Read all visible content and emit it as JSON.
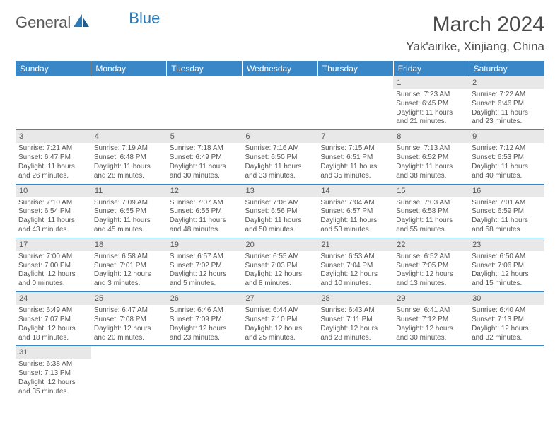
{
  "brand": {
    "part1": "General",
    "part2": "Blue"
  },
  "title": "March 2024",
  "location": "Yak'airike, Xinjiang, China",
  "colors": {
    "header_bg": "#3a87c7",
    "header_text": "#ffffff",
    "daynum_bg": "#e8e8e8",
    "border": "#3a87c7",
    "text": "#555555",
    "brand_gray": "#5a5a5a",
    "brand_blue": "#2a7ab8"
  },
  "weekdays": [
    "Sunday",
    "Monday",
    "Tuesday",
    "Wednesday",
    "Thursday",
    "Friday",
    "Saturday"
  ],
  "weeks": [
    [
      null,
      null,
      null,
      null,
      null,
      {
        "n": "1",
        "sr": "7:23 AM",
        "ss": "6:45 PM",
        "dl": "11 hours and 21 minutes."
      },
      {
        "n": "2",
        "sr": "7:22 AM",
        "ss": "6:46 PM",
        "dl": "11 hours and 23 minutes."
      }
    ],
    [
      {
        "n": "3",
        "sr": "7:21 AM",
        "ss": "6:47 PM",
        "dl": "11 hours and 26 minutes."
      },
      {
        "n": "4",
        "sr": "7:19 AM",
        "ss": "6:48 PM",
        "dl": "11 hours and 28 minutes."
      },
      {
        "n": "5",
        "sr": "7:18 AM",
        "ss": "6:49 PM",
        "dl": "11 hours and 30 minutes."
      },
      {
        "n": "6",
        "sr": "7:16 AM",
        "ss": "6:50 PM",
        "dl": "11 hours and 33 minutes."
      },
      {
        "n": "7",
        "sr": "7:15 AM",
        "ss": "6:51 PM",
        "dl": "11 hours and 35 minutes."
      },
      {
        "n": "8",
        "sr": "7:13 AM",
        "ss": "6:52 PM",
        "dl": "11 hours and 38 minutes."
      },
      {
        "n": "9",
        "sr": "7:12 AM",
        "ss": "6:53 PM",
        "dl": "11 hours and 40 minutes."
      }
    ],
    [
      {
        "n": "10",
        "sr": "7:10 AM",
        "ss": "6:54 PM",
        "dl": "11 hours and 43 minutes."
      },
      {
        "n": "11",
        "sr": "7:09 AM",
        "ss": "6:55 PM",
        "dl": "11 hours and 45 minutes."
      },
      {
        "n": "12",
        "sr": "7:07 AM",
        "ss": "6:55 PM",
        "dl": "11 hours and 48 minutes."
      },
      {
        "n": "13",
        "sr": "7:06 AM",
        "ss": "6:56 PM",
        "dl": "11 hours and 50 minutes."
      },
      {
        "n": "14",
        "sr": "7:04 AM",
        "ss": "6:57 PM",
        "dl": "11 hours and 53 minutes."
      },
      {
        "n": "15",
        "sr": "7:03 AM",
        "ss": "6:58 PM",
        "dl": "11 hours and 55 minutes."
      },
      {
        "n": "16",
        "sr": "7:01 AM",
        "ss": "6:59 PM",
        "dl": "11 hours and 58 minutes."
      }
    ],
    [
      {
        "n": "17",
        "sr": "7:00 AM",
        "ss": "7:00 PM",
        "dl": "12 hours and 0 minutes."
      },
      {
        "n": "18",
        "sr": "6:58 AM",
        "ss": "7:01 PM",
        "dl": "12 hours and 3 minutes."
      },
      {
        "n": "19",
        "sr": "6:57 AM",
        "ss": "7:02 PM",
        "dl": "12 hours and 5 minutes."
      },
      {
        "n": "20",
        "sr": "6:55 AM",
        "ss": "7:03 PM",
        "dl": "12 hours and 8 minutes."
      },
      {
        "n": "21",
        "sr": "6:53 AM",
        "ss": "7:04 PM",
        "dl": "12 hours and 10 minutes."
      },
      {
        "n": "22",
        "sr": "6:52 AM",
        "ss": "7:05 PM",
        "dl": "12 hours and 13 minutes."
      },
      {
        "n": "23",
        "sr": "6:50 AM",
        "ss": "7:06 PM",
        "dl": "12 hours and 15 minutes."
      }
    ],
    [
      {
        "n": "24",
        "sr": "6:49 AM",
        "ss": "7:07 PM",
        "dl": "12 hours and 18 minutes."
      },
      {
        "n": "25",
        "sr": "6:47 AM",
        "ss": "7:08 PM",
        "dl": "12 hours and 20 minutes."
      },
      {
        "n": "26",
        "sr": "6:46 AM",
        "ss": "7:09 PM",
        "dl": "12 hours and 23 minutes."
      },
      {
        "n": "27",
        "sr": "6:44 AM",
        "ss": "7:10 PM",
        "dl": "12 hours and 25 minutes."
      },
      {
        "n": "28",
        "sr": "6:43 AM",
        "ss": "7:11 PM",
        "dl": "12 hours and 28 minutes."
      },
      {
        "n": "29",
        "sr": "6:41 AM",
        "ss": "7:12 PM",
        "dl": "12 hours and 30 minutes."
      },
      {
        "n": "30",
        "sr": "6:40 AM",
        "ss": "7:13 PM",
        "dl": "12 hours and 32 minutes."
      }
    ],
    [
      {
        "n": "31",
        "sr": "6:38 AM",
        "ss": "7:13 PM",
        "dl": "12 hours and 35 minutes."
      },
      null,
      null,
      null,
      null,
      null,
      null
    ]
  ],
  "labels": {
    "sunrise": "Sunrise:",
    "sunset": "Sunset:",
    "daylight": "Daylight:"
  }
}
